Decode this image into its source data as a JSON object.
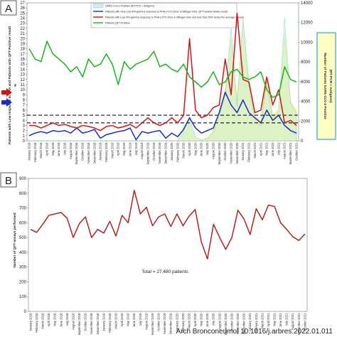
{
  "credit": "Arch Bronconeumol 10.1016/j.arbres.2022.01.011",
  "months": [
    "January 2018",
    "February 2018",
    "March 2018",
    "April 2018",
    "May 2018",
    "June 2018",
    "July 2018",
    "August 2018",
    "September 2018",
    "October 2018",
    "November 2018",
    "December 2018",
    "January 2019",
    "February 2019",
    "March 2019",
    "April 2019",
    "May 2019",
    "June 2019",
    "July 2019",
    "August 2019",
    "September 2019",
    "October 2019",
    "November 2019",
    "December 2019",
    "January 2020",
    "February 2020",
    "March 2020",
    "April 2020",
    "May 2020",
    "June 2020",
    "July 2020",
    "August 2020",
    "September 2020",
    "October 2020",
    "November 2020",
    "December 2020",
    "January 2021",
    "February 2021",
    "March 2021",
    "April 2021",
    "May 2021",
    "June 2021",
    "July 2021",
    "August 2021",
    "September 2021",
    "October 2021"
  ],
  "chart_data": [
    {
      "panel": "A",
      "type": "line",
      "x": "months",
      "ylabel": "Patients with Low response to PHA and Patients with QFT-Positive result %",
      "y2label": "Number of Patients SARS-CoV-2 Positive (RT-PCR + Antigens)",
      "ylim": [
        0,
        27
      ],
      "yticks": [
        0,
        1,
        2,
        3,
        4,
        5,
        6,
        7,
        8,
        9,
        10,
        11,
        12,
        13,
        14,
        15,
        16,
        17,
        18,
        19,
        20,
        21,
        22,
        23,
        24,
        25,
        26,
        27
      ],
      "y2lim": [
        0,
        14000
      ],
      "y2ticks": [
        0,
        2000,
        4000,
        6000,
        8000,
        10000,
        12000,
        14000
      ],
      "reference_lines": [
        5,
        3.5
      ],
      "grid": false,
      "legend_position": "top-center",
      "series": [
        {
          "name": "SARS-CoV-2 Positive (RT-PCR + Antigens)",
          "axis": "right",
          "style": "area",
          "color": "#f6f28a",
          "values": [
            0,
            0,
            0,
            0,
            0,
            0,
            0,
            0,
            0,
            0,
            0,
            0,
            0,
            0,
            0,
            0,
            0,
            0,
            0,
            0,
            0,
            0,
            0,
            0,
            0,
            0,
            1000,
            2000,
            300,
            50,
            300,
            1000,
            3000,
            5000,
            10500,
            4000,
            12000,
            6000,
            2500,
            2000,
            6500,
            2500,
            3200,
            11000,
            4000,
            3000
          ]
        },
        {
          "name": "SARS-CoV-2 Positive (RT-PCR + Antigens)",
          "axis": "right",
          "style": "area-light",
          "color": "#c9f2ee",
          "values": [
            0,
            0,
            0,
            0,
            0,
            0,
            0,
            0,
            0,
            0,
            0,
            0,
            0,
            0,
            0,
            0,
            0,
            0,
            0,
            0,
            0,
            0,
            0,
            0,
            0,
            0,
            1500,
            2200,
            400,
            100,
            200,
            800,
            2500,
            4500,
            11500,
            3500,
            12500,
            5500,
            2000,
            1500,
            6000,
            2000,
            3000,
            12500,
            3800,
            2800
          ]
        },
        {
          "name": "Patients with Very Low IFN-gamma response to PHA (<0.5 UI/mL in Mitogen tube: QFT-indeterminate result)",
          "axis": "left",
          "color": "#1a2bc8",
          "values": [
            1,
            1.5,
            1.8,
            1.5,
            2,
            1.8,
            2,
            1.5,
            2.5,
            1.5,
            1.8,
            2.2,
            0.5,
            1.2,
            1.5,
            1.8,
            2,
            2.5,
            0.2,
            1.8,
            1.5,
            1.8,
            2,
            0.5,
            1.5,
            0.8,
            2.2,
            4.5,
            2.5,
            1.5,
            2,
            2.5,
            5.5,
            9.5,
            7,
            5.5,
            8,
            5.5,
            4.5,
            3.5,
            6,
            4,
            5,
            3,
            2,
            1.5
          ]
        },
        {
          "name": "Patients with Low IFN-gamma response to PHA (<0.5 UI/mL in Mitogen tube and less than 50% below the average values)",
          "axis": "left",
          "color": "#d21414",
          "values": [
            3,
            3,
            2.5,
            3,
            3.5,
            3,
            3.2,
            2.8,
            2.5,
            3,
            2.8,
            2.5,
            2,
            2.8,
            3,
            2.5,
            2.8,
            3.2,
            2.5,
            3.5,
            4.5,
            3.5,
            3,
            3.5,
            4.5,
            3.5,
            5,
            20,
            6,
            4.5,
            5,
            6.5,
            7,
            16,
            9,
            25,
            12,
            11.5,
            5.5,
            6,
            12.5,
            7,
            10,
            3.5,
            4,
            3
          ]
        },
        {
          "name": "Patients QFT Positive",
          "axis": "left",
          "color": "#19b51c",
          "values": [
            18,
            16,
            15.5,
            19.5,
            17,
            16,
            15,
            13.5,
            14.5,
            12.5,
            16,
            14.5,
            15,
            17,
            15,
            11,
            15.5,
            14,
            15,
            15.5,
            16,
            17.5,
            14.5,
            15,
            14,
            13.5,
            15,
            12.5,
            11.5,
            10.5,
            11.5,
            13.5,
            11,
            11.5,
            13.5,
            14,
            12.5,
            12,
            12.5,
            13.5,
            10,
            8.5,
            9,
            14.5,
            12,
            11.5
          ]
        }
      ]
    },
    {
      "panel": "B",
      "type": "line",
      "x": "months",
      "ylabel": "Number of QFT-assays performed",
      "ylim": [
        0,
        900
      ],
      "yticks": [
        0,
        100,
        200,
        300,
        400,
        500,
        600,
        700,
        800,
        900
      ],
      "grid": false,
      "annotation": "Total = 27,480 patients",
      "series": [
        {
          "name": "",
          "color": "#b22222",
          "values": [
            555,
            535,
            590,
            650,
            660,
            670,
            630,
            500,
            595,
            640,
            500,
            555,
            530,
            610,
            510,
            650,
            600,
            820,
            660,
            705,
            580,
            640,
            660,
            575,
            660,
            580,
            645,
            690,
            470,
            355,
            590,
            500,
            420,
            500,
            685,
            625,
            520,
            695,
            620,
            720,
            710,
            600,
            555,
            505,
            480,
            525
          ]
        }
      ]
    }
  ],
  "panel_a": {
    "letter": "A",
    "legend": [
      "SARS-CoV-2 Positive (RT-PCR + Antigens)",
      "Patients with Very Low IFN-gamma response to PHA (<0.5 UI/mL in Mitogen tube: QFT-indeterminate result)",
      "Patients with Low IFN-gamma response to PHA (<0.5 UI/mL in Mitogen tube and less than 50% below the average values)",
      "Patients QFT Positive"
    ],
    "ylabel_line1": "Patients with Low response to PHA and Patients with QFT-Positive result",
    "ylabel_line2": "%",
    "y2label_line1": "Number of Patients SARS-CoV-2 Positive",
    "y2label_line2": "(RT-PCR + Antigens)"
  },
  "panel_b": {
    "letter": "B",
    "ylabel": "Number of QFT-assays performed",
    "total_label": "Total = 27,480 patients"
  }
}
